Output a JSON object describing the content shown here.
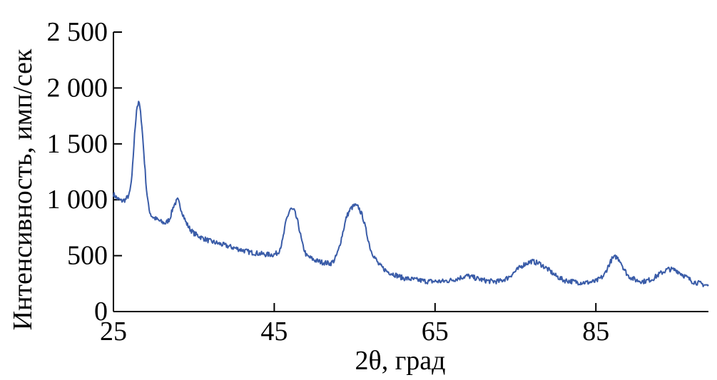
{
  "chart_data": {
    "type": "line",
    "xlabel": "2θ, град",
    "ylabel": "Интенсивность, имп/сек",
    "xlim": [
      25,
      99
    ],
    "ylim": [
      0,
      2500
    ],
    "x_ticks": [
      25,
      45,
      65,
      85
    ],
    "x_tick_labels": [
      "25",
      "45",
      "65",
      "85"
    ],
    "y_ticks": [
      0,
      500,
      1000,
      1500,
      2000,
      2500
    ],
    "y_tick_labels": [
      "0",
      "500",
      "1 000",
      "1 500",
      "2 000",
      "2 500"
    ],
    "grid": false,
    "series": [
      {
        "color": "#3a5ca8",
        "x": [
          25,
          25.5,
          26,
          26.5,
          27,
          27.3,
          27.6,
          27.9,
          28.2,
          28.5,
          28.8,
          29.1,
          29.4,
          29.7,
          30,
          30.5,
          31,
          31.5,
          32,
          32.5,
          33,
          33.5,
          34,
          34.5,
          35,
          36,
          37,
          38,
          39,
          40,
          41,
          42,
          43,
          44,
          45,
          45.5,
          46,
          46.5,
          47,
          47.5,
          48,
          48.5,
          49,
          50,
          51,
          52,
          52.5,
          53,
          53.5,
          54,
          54.5,
          55,
          55.5,
          56,
          56.5,
          57,
          58,
          59,
          60,
          61,
          62,
          63,
          64,
          65,
          66,
          67,
          68,
          69,
          70,
          71,
          72,
          73,
          74,
          75,
          76,
          77,
          78,
          79,
          80,
          81,
          82,
          83,
          84,
          85,
          86,
          86.5,
          87,
          87.5,
          88,
          88.5,
          89,
          90,
          91,
          92,
          93,
          94,
          95,
          96,
          97,
          98,
          99
        ],
        "y": [
          1050,
          1010,
          990,
          1000,
          1050,
          1200,
          1550,
          1830,
          1870,
          1700,
          1400,
          1100,
          920,
          860,
          840,
          820,
          800,
          790,
          830,
          950,
          1000,
          900,
          800,
          740,
          700,
          660,
          630,
          610,
          590,
          570,
          550,
          530,
          520,
          510,
          510,
          530,
          620,
          820,
          920,
          900,
          780,
          600,
          500,
          460,
          440,
          430,
          460,
          550,
          700,
          850,
          920,
          950,
          930,
          850,
          700,
          550,
          420,
          360,
          330,
          300,
          290,
          280,
          270,
          270,
          270,
          280,
          300,
          320,
          300,
          280,
          270,
          270,
          300,
          360,
          420,
          450,
          430,
          380,
          320,
          280,
          270,
          260,
          260,
          270,
          320,
          400,
          470,
          490,
          460,
          380,
          320,
          280,
          270,
          290,
          340,
          380,
          370,
          320,
          270,
          250,
          230
        ]
      }
    ]
  }
}
